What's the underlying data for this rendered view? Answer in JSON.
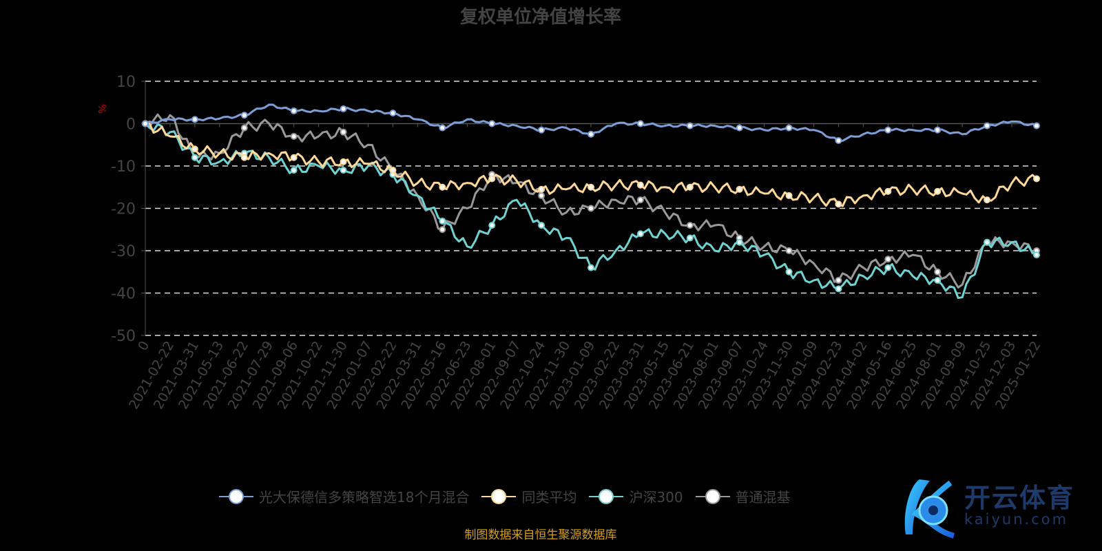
{
  "chart_data": {
    "type": "line",
    "title": "复权单位净值增长率",
    "ylabel": "%",
    "ylim": [
      -50,
      10
    ],
    "yticks": [
      10,
      0,
      -10,
      -20,
      -30,
      -40,
      -50
    ],
    "grid": true,
    "legend_position": "bottom",
    "categories": [
      "0",
      "2021-02-22",
      "2021-03-31",
      "2021-05-13",
      "2021-06-22",
      "2021-07-29",
      "2021-09-06",
      "2021-10-22",
      "2021-11-30",
      "2022-01-07",
      "2022-02-22",
      "2022-03-31",
      "2022-05-16",
      "2022-06-23",
      "2022-08-01",
      "2022-09-07",
      "2022-10-24",
      "2022-11-30",
      "2023-01-09",
      "2023-02-22",
      "2023-03-31",
      "2023-05-15",
      "2023-06-21",
      "2023-08-01",
      "2023-09-07",
      "2023-10-24",
      "2023-11-30",
      "2024-01-09",
      "2024-02-23",
      "2024-04-02",
      "2024-05-16",
      "2024-06-25",
      "2024-08-01",
      "2024-09-09",
      "2024-10-25",
      "2024-12-03",
      "2025-01-22"
    ],
    "series": [
      {
        "name": "光大保德信多策略智选18个月混合",
        "color": "#7b9fd6",
        "values": [
          0,
          1,
          1,
          1.2,
          2,
          4.5,
          3,
          3,
          3.5,
          3,
          2.5,
          1,
          -1,
          1,
          0,
          -0.5,
          -1.5,
          -1,
          -2.5,
          0,
          0,
          -0.5,
          -0.5,
          -0.5,
          -1,
          -1.5,
          -1,
          -1.5,
          -4,
          -2.5,
          -1.5,
          -1.5,
          -1.5,
          -2.5,
          -0.5,
          0.5,
          -0.5
        ]
      },
      {
        "name": "同类平均",
        "color": "#ffd898",
        "values": [
          0,
          -3,
          -6,
          -7,
          -8,
          -7,
          -8,
          -9,
          -9,
          -9.5,
          -11,
          -14,
          -15,
          -14,
          -13,
          -13.5,
          -15.5,
          -15.5,
          -15,
          -14.5,
          -14.5,
          -15,
          -15,
          -15,
          -15.5,
          -16.5,
          -17,
          -17.5,
          -19,
          -17,
          -16,
          -15.5,
          -16,
          -16.5,
          -18,
          -14,
          -13
        ]
      },
      {
        "name": "沪深300",
        "color": "#6fd3d3",
        "values": [
          0,
          -2,
          -8,
          -9,
          -7,
          -8,
          -11,
          -10,
          -11,
          -10,
          -12,
          -17,
          -23,
          -29,
          -24,
          -18,
          -24,
          -27,
          -34,
          -30,
          -26,
          -26,
          -27,
          -30,
          -28,
          -31,
          -35,
          -37,
          -39,
          -36,
          -34,
          -36,
          -37,
          -41,
          -28,
          -28,
          -31
        ]
      },
      {
        "name": "普通混基",
        "color": "#999999",
        "values": [
          0,
          2,
          -8,
          -7,
          -1,
          0,
          -3,
          -3,
          -2,
          -5,
          -11,
          -17,
          -25,
          -20,
          -12,
          -14,
          -17,
          -21,
          -20,
          -18,
          -18,
          -21,
          -24,
          -24,
          -27,
          -29,
          -30,
          -33,
          -37,
          -34,
          -32,
          -31,
          -35,
          -38,
          -28,
          -28,
          -30
        ]
      }
    ]
  },
  "footer": {
    "source": "制图数据来自恒生聚源数据库"
  },
  "watermark": {
    "name": "开云体育",
    "url": "kaiyun.com"
  }
}
